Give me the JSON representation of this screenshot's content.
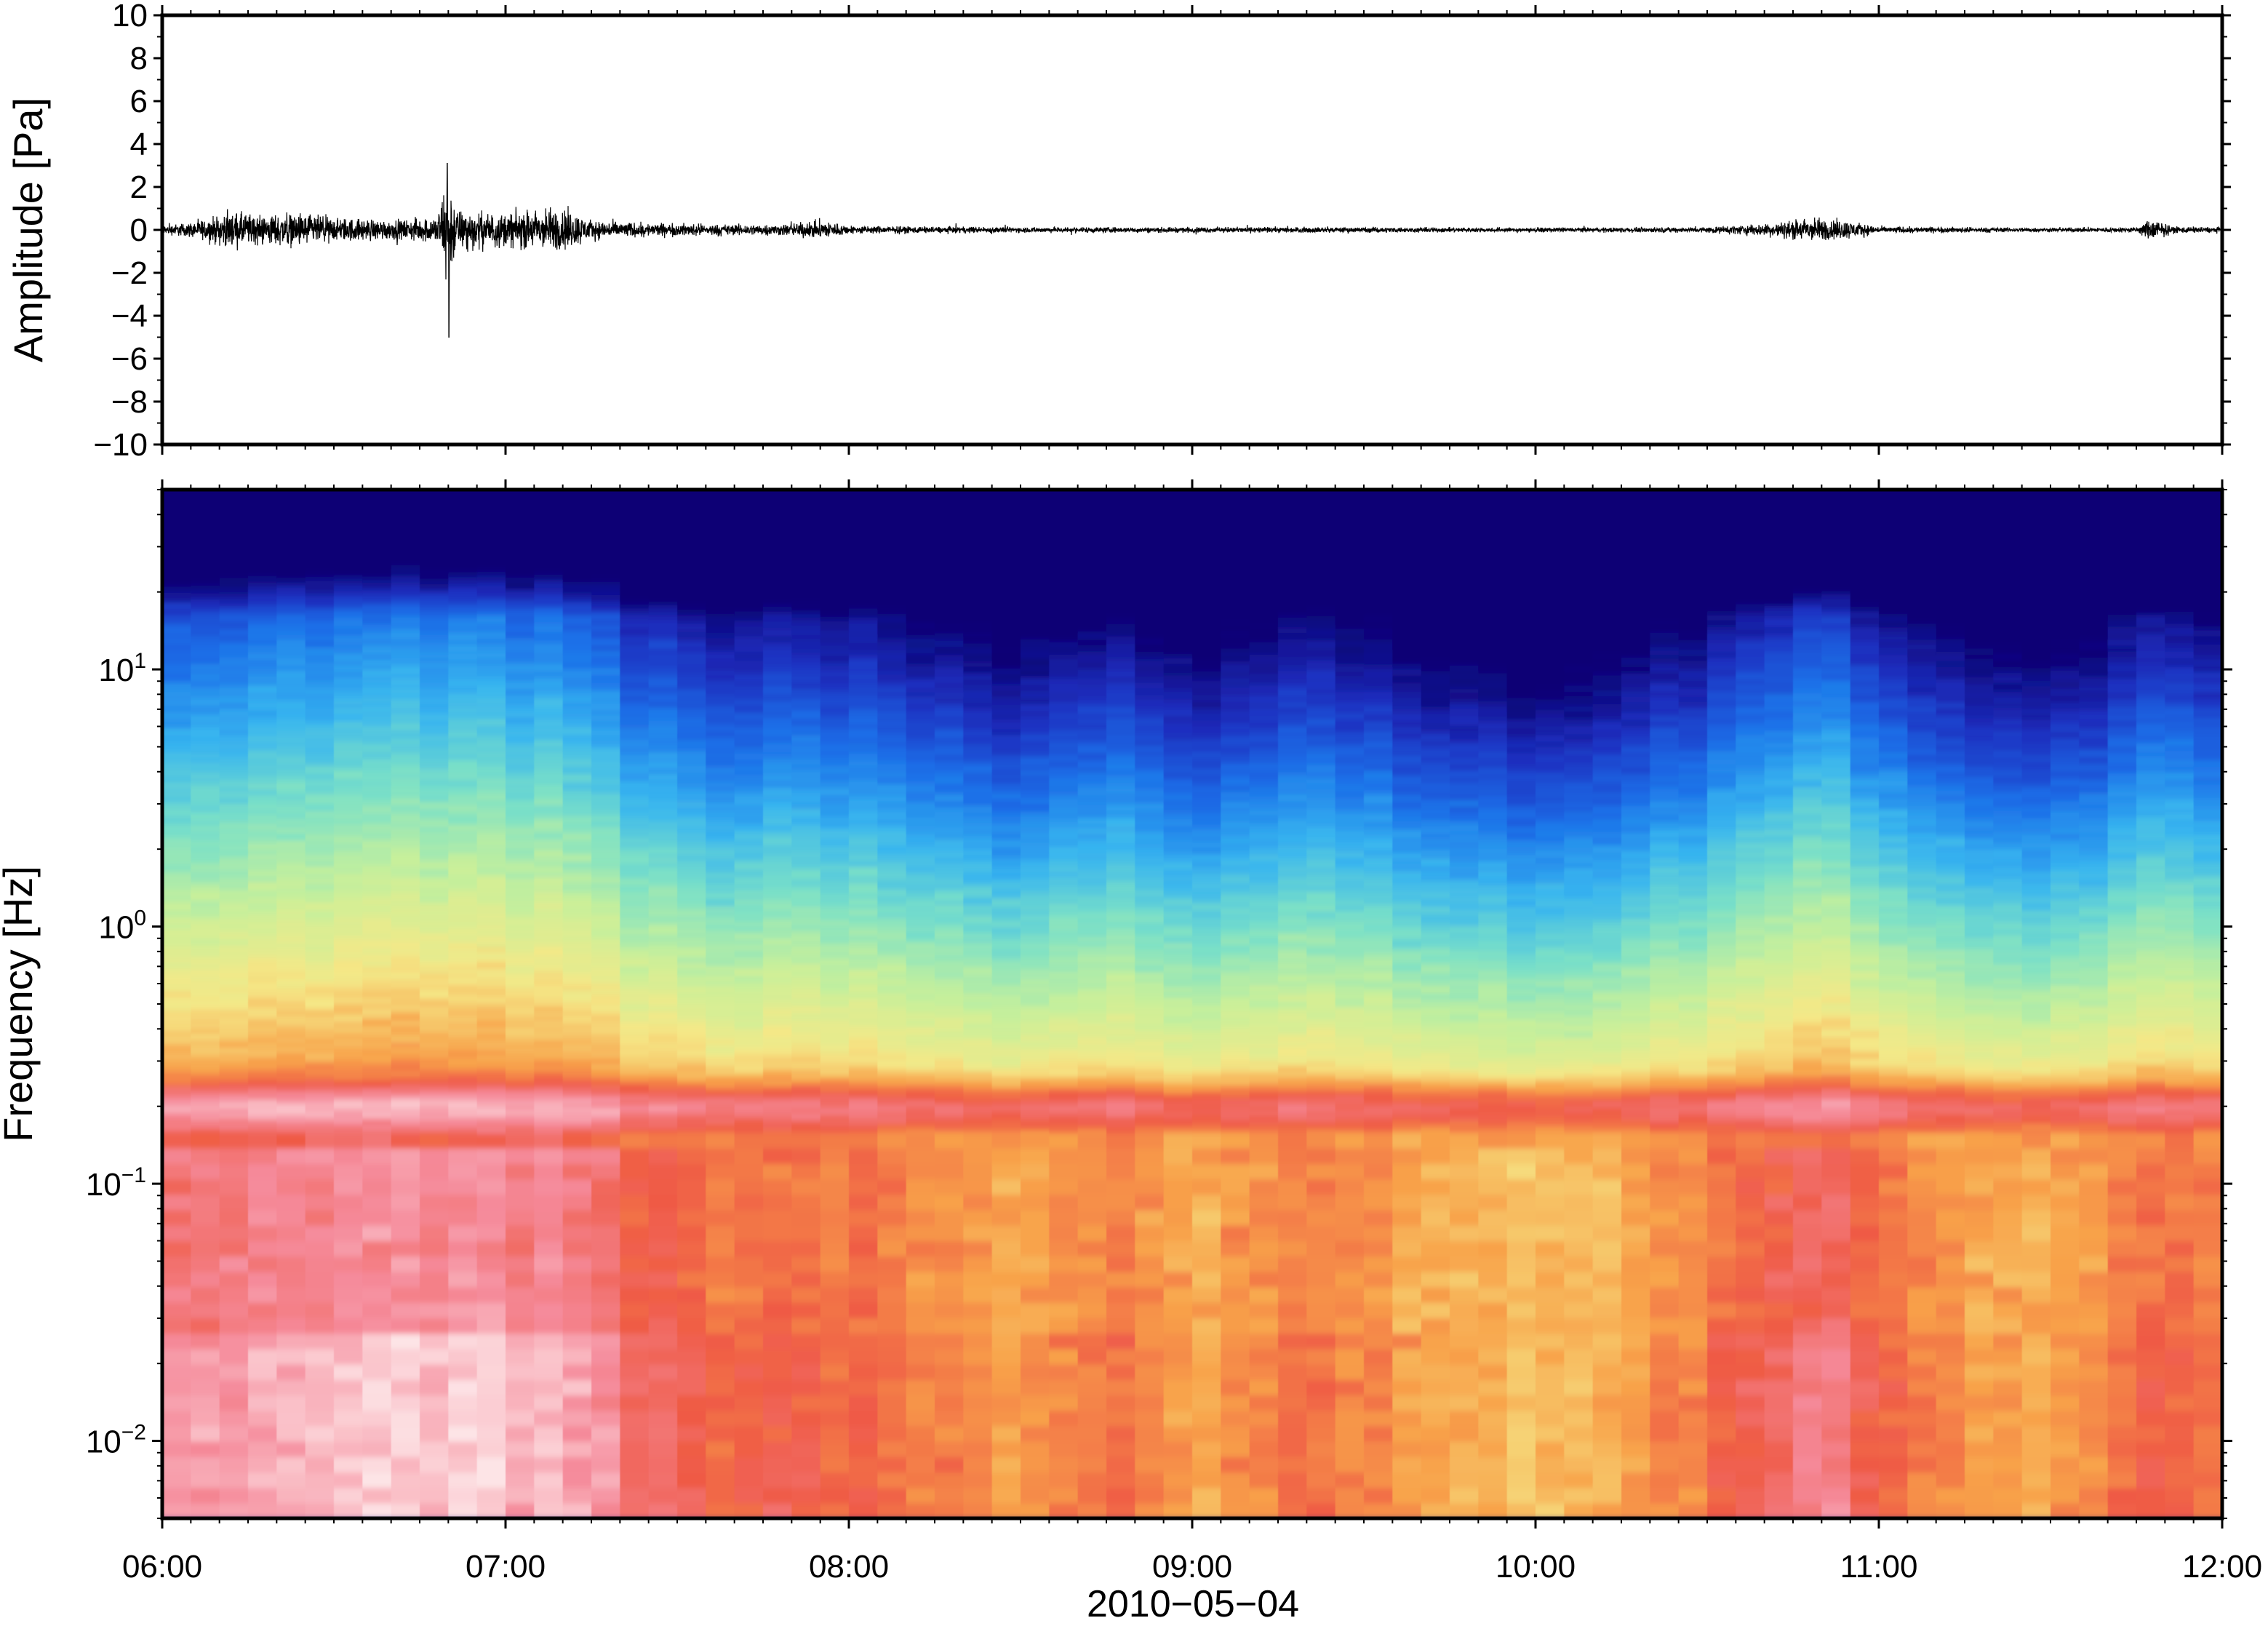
{
  "chart_data": [
    {
      "type": "line",
      "panel": "waveform",
      "ylabel": "Amplitude [Pa]",
      "ylim": [
        -10,
        10
      ],
      "yticks": [
        {
          "value": 10,
          "label": "10"
        },
        {
          "value": 8,
          "label": "8"
        },
        {
          "value": 6,
          "label": "6"
        },
        {
          "value": 4,
          "label": "4"
        },
        {
          "value": 2,
          "label": "2"
        },
        {
          "value": 0,
          "label": "0"
        },
        {
          "value": -2,
          "label": "−2"
        },
        {
          "value": -4,
          "label": "−4"
        },
        {
          "value": -6,
          "label": "−6"
        },
        {
          "value": -8,
          "label": "−8"
        },
        {
          "value": -10,
          "label": "−10"
        }
      ],
      "xlim": [
        "06:00",
        "12:00"
      ],
      "line_color": "#000000",
      "envelope_hours": [
        6.0,
        6.1,
        6.2,
        6.3,
        6.4,
        6.5,
        6.6,
        6.7,
        6.8,
        6.83,
        6.86,
        6.9,
        7.0,
        7.1,
        7.17,
        7.25,
        7.4,
        7.6,
        7.8,
        7.93,
        8.0,
        8.2,
        8.5,
        9.0,
        9.5,
        10.0,
        10.5,
        10.7,
        10.8,
        10.9,
        11.0,
        11.2,
        11.5,
        11.75,
        11.8,
        11.85,
        12.0
      ],
      "envelope_pa": [
        0.3,
        0.6,
        1.3,
        1.1,
        1.2,
        0.9,
        0.8,
        0.7,
        1.0,
        4.0,
        1.5,
        1.3,
        1.2,
        1.5,
        1.6,
        0.7,
        0.5,
        0.4,
        0.4,
        0.7,
        0.3,
        0.25,
        0.2,
        0.2,
        0.2,
        0.15,
        0.2,
        0.5,
        0.9,
        0.7,
        0.25,
        0.2,
        0.15,
        0.2,
        0.9,
        0.25,
        0.2
      ],
      "peak_max": {
        "hour": 6.83,
        "value": 3.1
      },
      "peak_min": {
        "hour": 6.835,
        "value": -5.0
      }
    },
    {
      "type": "heatmap",
      "panel": "spectrogram",
      "ylabel": "Frequency [Hz]",
      "yscale": "log",
      "ylim_hz": [
        0.005,
        50
      ],
      "yticks": [
        {
          "value": 10,
          "base": "10",
          "exp": "1"
        },
        {
          "value": 1,
          "base": "10",
          "exp": "0"
        },
        {
          "value": 0.1,
          "base": "10",
          "exp": "−1"
        },
        {
          "value": 0.01,
          "base": "10",
          "exp": "−2"
        }
      ],
      "xlim": [
        "06:00",
        "12:00"
      ],
      "xticks": [
        "06:00",
        "07:00",
        "08:00",
        "09:00",
        "10:00",
        "11:00",
        "12:00"
      ],
      "xlabel": "2010−05−04",
      "colormap": [
        "#0b0275",
        "#1e2fc0",
        "#1a6ee8",
        "#36b4f0",
        "#79e0c8",
        "#c8f09a",
        "#f5e887",
        "#f8a24a",
        "#ef5a45",
        "#f58a9a",
        "#fde4e6"
      ],
      "activity_hours": [
        6.0,
        6.4,
        6.8,
        7.1,
        7.3,
        7.6,
        7.9,
        8.2,
        8.5,
        8.75,
        9.0,
        9.4,
        9.7,
        10.0,
        10.2,
        10.4,
        10.6,
        10.85,
        11.0,
        11.3,
        11.6,
        11.8,
        12.0
      ],
      "activity_level": [
        0.85,
        0.9,
        1.0,
        0.95,
        0.75,
        0.55,
        0.6,
        0.45,
        0.35,
        0.5,
        0.35,
        0.5,
        0.3,
        0.25,
        0.25,
        0.45,
        0.55,
        0.85,
        0.55,
        0.35,
        0.4,
        0.6,
        0.5
      ],
      "microbarom_peak_hz": 0.2
    }
  ]
}
